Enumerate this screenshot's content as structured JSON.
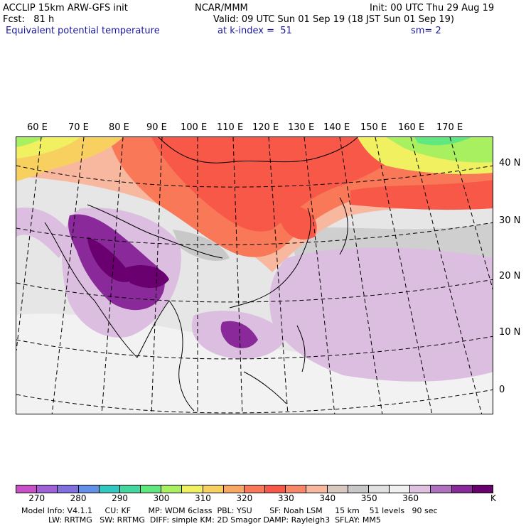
{
  "header": {
    "line1_left": "ACCLIP 15km ARW-GFS init",
    "line1_center": "NCAR/MMM",
    "line1_right": "Init: 00 UTC Thu 29 Aug 19",
    "line2_left": "Fcst:   81 h",
    "line2_right": "Valid: 09 UTC Sun 01 Sep 19 (18 JST Sun 01 Sep 19)",
    "line3_left": "Equivalent potential temperature",
    "line3_center": "at k-index =  51",
    "line3_right": "sm= 2"
  },
  "longitude_labels": [
    "60 E",
    "70 E",
    "80 E",
    "90 E",
    "100 E",
    "110 E",
    "120 E",
    "130 E",
    "140 E",
    "150 E",
    "160 E",
    "170 E"
  ],
  "latitude_labels": [
    "40 N",
    "30 N",
    "20 N",
    "10 N",
    "0"
  ],
  "colorbar": {
    "colors": [
      "#c84fc8",
      "#a060d8",
      "#8070e0",
      "#6090e8",
      "#30c8c0",
      "#40d8a0",
      "#60e880",
      "#a8f060",
      "#f0f060",
      "#f8d060",
      "#f8a860",
      "#f87858",
      "#f85848",
      "#f88868",
      "#f8b8a0",
      "#d8c8c0",
      "#c8c8c8",
      "#e0e0e0",
      "#f0f0f0",
      "#e0c0e0",
      "#b070c0",
      "#8a2a9a",
      "#6a0070"
    ],
    "labels": [
      "270",
      "280",
      "290",
      "300",
      "310",
      "320",
      "330",
      "340",
      "350",
      "360"
    ],
    "unit": "K"
  },
  "footer": {
    "line1": "Model Info: V4.1.1     CU: KF       MP: WDM 6class  PBL: YSU       SF: Noah LSM     15 km    51 levels   90 sec",
    "line2": "LW: RRTMG   SW: RRTMG  DIFF: simple KM: 2D Smagor DAMP: Rayleigh3  SFLAY: MM5"
  }
}
